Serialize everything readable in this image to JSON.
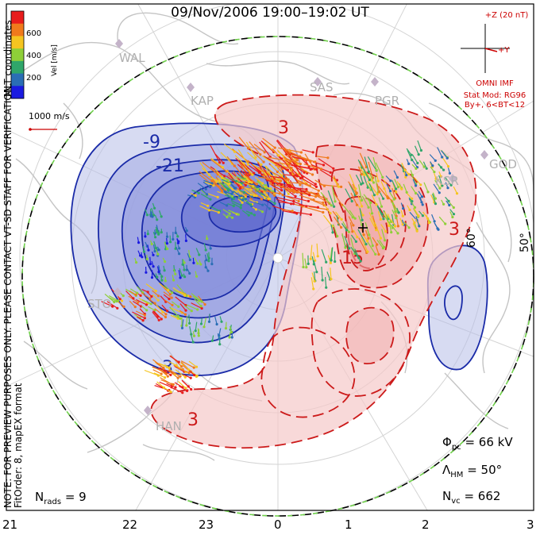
{
  "title": "09/Nov/2006 19:00–19:02 UT",
  "colorbar": {
    "axis_label": "Vel [m/s]",
    "ticks": [
      "600",
      "400",
      "200"
    ],
    "colors": [
      "#e81c1c",
      "#f07a1c",
      "#f5c520",
      "#8ecf38",
      "#2fa66a",
      "#2a6eb5",
      "#1a1ae0"
    ]
  },
  "scale": {
    "label": "1000 m/s",
    "color": "#cc0000"
  },
  "coordinates": "MLT coordinates",
  "notice": "NOTE: FOR PREVIEW PURPOSES ONLY. PLEASE CONTACT VT-SD STAFF FOR VERIFICATION.",
  "fit_order": "FitOrder: 8, mapEX format",
  "imf": {
    "plus_z": "+Z (20 nT)",
    "plus_y": "+Y",
    "source": "OMNI IMF",
    "stat_mod": "Stat Mod: RG96",
    "condition": "By+, 6<BT<12"
  },
  "stats": {
    "phi_sym": "Φ",
    "phi_sub": "pc",
    "phi_value": "= 66 kV",
    "lambda_sym": "Λ",
    "lambda_sub": "HM",
    "lambda_value": "= 50°",
    "nvc_sym": "N",
    "nvc_sub": "vc",
    "nvc_value": "= 662",
    "nrads_sym": "N",
    "nrads_sub": "rads",
    "nrads_value": "= 9"
  },
  "mlt_labels": [
    "21",
    "22",
    "23",
    "0",
    "1",
    "2",
    "3"
  ],
  "latitude_labels": [
    "60°",
    "50°"
  ],
  "stations": [
    "WAL",
    "KAP",
    "SAS",
    "PGR",
    "GOD",
    "KSR",
    "STO",
    "HAN"
  ],
  "contour_labels": {
    "neg": [
      "-9",
      "-21",
      "-3"
    ],
    "pos": [
      "3",
      "15",
      "3",
      "3"
    ]
  },
  "map_colors": {
    "negative_line": "#1a2ba8",
    "negative_fill": "#b7bde8",
    "positive_line": "#cc1a1a",
    "positive_fill": "#f5c9c9",
    "boundary": "#6fd14a",
    "coast": "#c4c4c4"
  }
}
